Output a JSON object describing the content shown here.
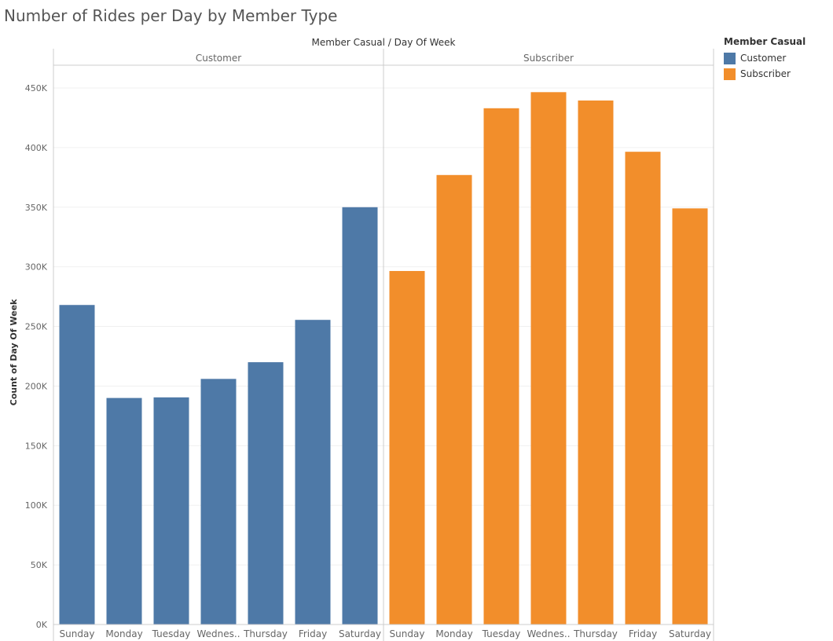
{
  "page": {
    "title": "Number of Rides per Day by Member Type"
  },
  "legend": {
    "title": "Member Casual",
    "items": [
      {
        "label": "Customer",
        "color": "#4e79a7"
      },
      {
        "label": "Subscriber",
        "color": "#f28e2b"
      }
    ]
  },
  "chart_data": {
    "type": "bar",
    "title": "Number of Rides per Day by Member Type",
    "column_header": "Member Casual  /  Day Of Week",
    "ylabel": "Count of Day Of Week",
    "xlabel": "",
    "ylim": [
      0,
      470000
    ],
    "yticks": [
      0,
      50000,
      100000,
      150000,
      200000,
      250000,
      300000,
      350000,
      400000,
      450000
    ],
    "ytick_labels": [
      "0K",
      "50K",
      "100K",
      "150K",
      "200K",
      "250K",
      "300K",
      "350K",
      "400K",
      "450K"
    ],
    "grid": true,
    "legend_position": "right",
    "panels": [
      {
        "name": "Customer",
        "color": "#4e79a7",
        "categories": [
          "Sunday",
          "Monday",
          "Tuesday",
          "Wednes..",
          "Thursday",
          "Friday",
          "Saturday"
        ],
        "values": [
          268000,
          190000,
          190500,
          206000,
          220000,
          255500,
          350000
        ]
      },
      {
        "name": "Subscriber",
        "color": "#f28e2b",
        "categories": [
          "Sunday",
          "Monday",
          "Tuesday",
          "Wednes..",
          "Thursday",
          "Friday",
          "Saturday"
        ],
        "values": [
          296500,
          377000,
          433000,
          446500,
          439500,
          396500,
          349000
        ]
      }
    ]
  }
}
